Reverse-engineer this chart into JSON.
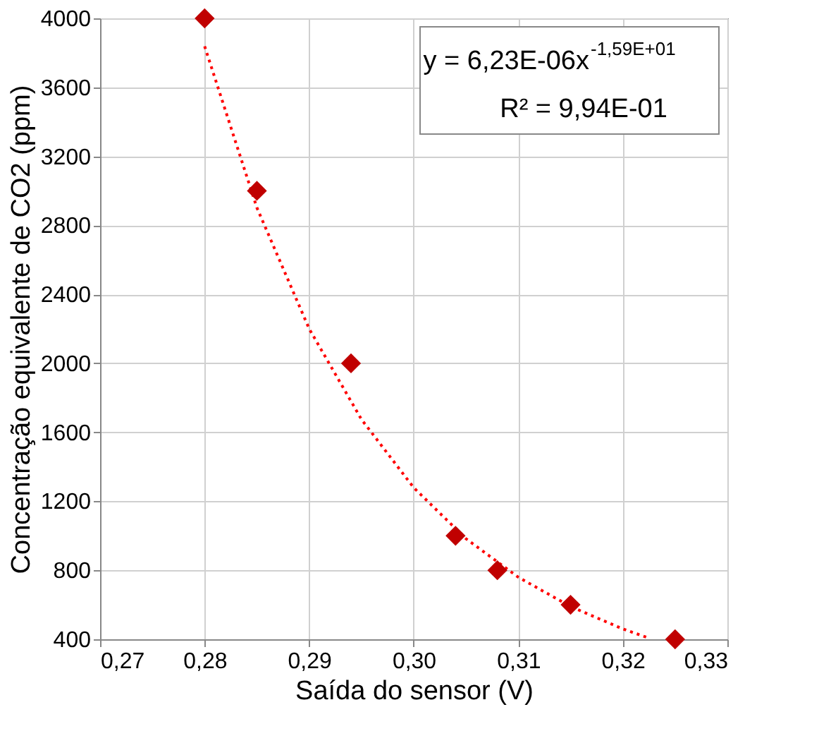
{
  "chart_data": {
    "type": "scatter",
    "xlabel": "Saída do sensor (V)",
    "ylabel": "Concentração equivalente de CO2 (ppm)",
    "xlim": [
      0.27,
      0.33
    ],
    "xticks": [
      {
        "value": 0.27,
        "label": "0,27"
      },
      {
        "value": 0.28,
        "label": "0,28"
      },
      {
        "value": 0.29,
        "label": "0,29"
      },
      {
        "value": 0.3,
        "label": "0,30"
      },
      {
        "value": 0.31,
        "label": "0,31"
      },
      {
        "value": 0.32,
        "label": "0,32"
      },
      {
        "value": 0.33,
        "label": "0,33"
      }
    ],
    "ylim": [
      400,
      4000
    ],
    "yticks": [
      400,
      800,
      1200,
      1600,
      2000,
      2400,
      2800,
      3200,
      3600,
      4000
    ],
    "grid": true,
    "series": [
      {
        "type": "line",
        "color": "#ff0000",
        "line_style": "dotted",
        "marker": "none",
        "x": [
          0.28,
          0.285,
          0.29,
          0.295,
          0.3,
          0.305,
          0.31,
          0.315,
          0.32,
          0.3225
        ],
        "values": [
          3838,
          2902,
          2200,
          1675,
          1279,
          983,
          760,
          590,
          460,
          407
        ]
      },
      {
        "type": "scatter",
        "color": "#c00000",
        "marker": "diamond",
        "x": [
          0.28,
          0.285,
          0.294,
          0.304,
          0.308,
          0.315,
          0.325
        ],
        "values": [
          4000,
          3000,
          2000,
          1000,
          800,
          600,
          400
        ]
      }
    ],
    "annotations": [
      "y = 6,23E-06x$^{-1,59E+01}$",
      "R² = 9,94E-01"
    ]
  }
}
